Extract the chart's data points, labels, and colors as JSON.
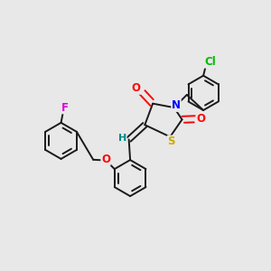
{
  "bg_color": "#e8e8e8",
  "bond_color": "#1a1a1a",
  "colors": {
    "O": "#ff0000",
    "N": "#0000ff",
    "S": "#ccaa00",
    "F": "#dd00dd",
    "Cl": "#00bb00",
    "H": "#008888",
    "C": "#1a1a1a"
  },
  "line_width": 1.4,
  "font_size": 8.5
}
